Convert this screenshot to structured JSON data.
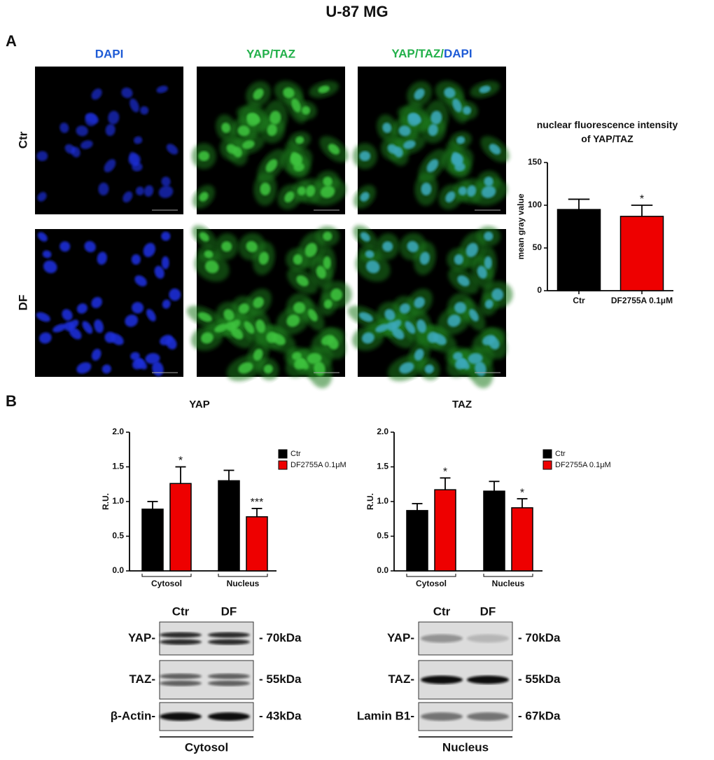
{
  "title": "U-87 MG",
  "panel_a": {
    "label": "A",
    "columns": [
      "DAPI",
      "YAP/TAZ"
    ],
    "merge_label": [
      "YAP/TAZ/",
      "DAPI"
    ],
    "rows": [
      "Ctr",
      "DF"
    ]
  },
  "panel_b": {
    "label": "B"
  },
  "blots": [
    {
      "lanes": [
        "Ctr",
        "DF"
      ],
      "fraction": "Cytosol",
      "bands": [
        {
          "name": "YAP-",
          "size": "- 70kDa"
        },
        {
          "name": "TAZ-",
          "size": "- 55kDa"
        },
        {
          "name": "β-Actin-",
          "size": "- 43kDa"
        }
      ]
    },
    {
      "lanes": [
        "Ctr",
        "DF"
      ],
      "fraction": "Nucleus",
      "bands": [
        {
          "name": "YAP-",
          "size": "- 70kDa"
        },
        {
          "name": "TAZ-",
          "size": "- 55kDa"
        },
        {
          "name": "Lamin B1-",
          "size": "- 67kDa"
        }
      ]
    }
  ],
  "chart_data": [
    {
      "type": "bar",
      "title": "nuclear fluorescence intensity of YAP/TAZ",
      "y_label": "mean gray value",
      "categories": [
        "Ctr",
        "DF2755A 0.1μM"
      ],
      "values": [
        95,
        87
      ],
      "errors": [
        12,
        13
      ],
      "colors": [
        "#000000",
        "#ee0000"
      ],
      "annotations": [
        null,
        "*"
      ],
      "ylim": [
        0,
        150
      ],
      "yticks": [
        0,
        50,
        100,
        150
      ]
    },
    {
      "type": "grouped_bar",
      "title": "YAP",
      "y_label": "R.U.",
      "categories": [
        "Cytosol",
        "Nucleus"
      ],
      "series": [
        {
          "name": "Ctr",
          "color": "#000000",
          "values": [
            0.89,
            1.3
          ],
          "errors": [
            0.11,
            0.15
          ],
          "annotations": [
            null,
            null
          ]
        },
        {
          "name": "DF2755A 0.1μM",
          "color": "#ee0000",
          "values": [
            1.26,
            0.78
          ],
          "errors": [
            0.24,
            0.12
          ],
          "annotations": [
            "*",
            "***"
          ]
        }
      ],
      "ylim": [
        0,
        2
      ],
      "yticks": [
        {
          "value": 0,
          "label": "0.0"
        },
        0.5,
        {
          "value": 1,
          "label": "1.0"
        },
        1.5,
        {
          "value": 2,
          "label": "2.0"
        }
      ],
      "legend": "top-right"
    },
    {
      "type": "grouped_bar",
      "title": "TAZ",
      "y_label": "R.U.",
      "categories": [
        "Cytosol",
        "Nucleus"
      ],
      "series": [
        {
          "name": "Ctr",
          "color": "#000000",
          "values": [
            0.87,
            1.15
          ],
          "errors": [
            0.1,
            0.14
          ],
          "annotations": [
            null,
            null
          ]
        },
        {
          "name": "DF2755A 0.1μM",
          "color": "#ee0000",
          "values": [
            1.17,
            0.91
          ],
          "errors": [
            0.17,
            0.13
          ],
          "annotations": [
            "*",
            "*"
          ]
        }
      ],
      "ylim": [
        0,
        2
      ],
      "yticks": [
        {
          "value": 0,
          "label": "0.0"
        },
        0.5,
        {
          "value": 1,
          "label": "1.0"
        },
        1.5,
        {
          "value": 2,
          "label": "2.0"
        }
      ],
      "legend": "top-right"
    }
  ]
}
